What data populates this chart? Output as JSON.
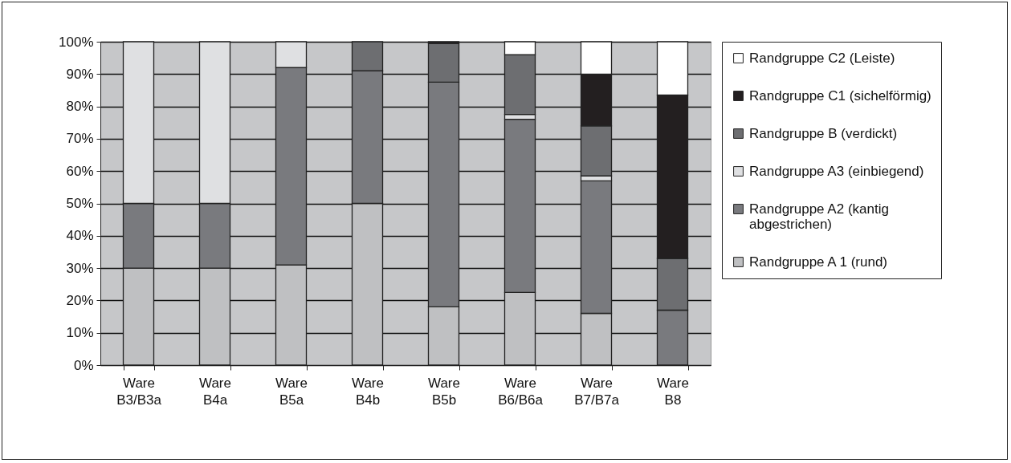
{
  "chart_data": {
    "type": "bar",
    "stacked": true,
    "categories": [
      "Ware B3/B3a",
      "Ware B4a",
      "Ware B5a",
      "Ware B4b",
      "Ware B5b",
      "Ware B6/B6a",
      "Ware B7/B7a",
      "Ware B8"
    ],
    "series": [
      {
        "name": "Randgruppe A 1 (rund)",
        "color": "#bfc0c2",
        "values": [
          30,
          30,
          31,
          50,
          18,
          22.5,
          16,
          null
        ]
      },
      {
        "name": "Randgruppe A2 (kantig abgestrichen)",
        "color": "#797a7e",
        "values": [
          20,
          20,
          61,
          41,
          69.5,
          53.5,
          41,
          17
        ]
      },
      {
        "name": "Randgruppe A3 (einbiegend)",
        "color": "#dfe0e2",
        "values": [
          50,
          50,
          8,
          null,
          null,
          1.5,
          1.5,
          null
        ]
      },
      {
        "name": "Randgruppe B (verdickt)",
        "color": "#6d6e71",
        "values": [
          null,
          null,
          null,
          9,
          12,
          18.5,
          15.5,
          16
        ]
      },
      {
        "name": "Randgruppe C1 (sichelförmig)",
        "color": "#231f20",
        "values": [
          null,
          null,
          null,
          null,
          0.5,
          null,
          16,
          50.5
        ]
      },
      {
        "name": "Randgruppe C2 (Leiste)",
        "color": "#ffffff",
        "values": [
          null,
          null,
          null,
          null,
          null,
          4,
          10,
          16.5
        ]
      }
    ],
    "ylim": [
      0,
      100
    ],
    "yticks": [
      {
        "value": 0,
        "label": "0%"
      },
      {
        "value": 10,
        "label": "10%"
      },
      {
        "value": 20,
        "label": "20%"
      },
      {
        "value": 30,
        "label": "30%"
      },
      {
        "value": 40,
        "label": "40%"
      },
      {
        "value": 50,
        "label": "50%"
      },
      {
        "value": 60,
        "label": "60%"
      },
      {
        "value": 70,
        "label": "70%"
      },
      {
        "value": 80,
        "label": "80%"
      },
      {
        "value": 90,
        "label": "90%"
      },
      {
        "value": 100,
        "label": "100%"
      }
    ],
    "grid": "y",
    "legend": "right"
  }
}
